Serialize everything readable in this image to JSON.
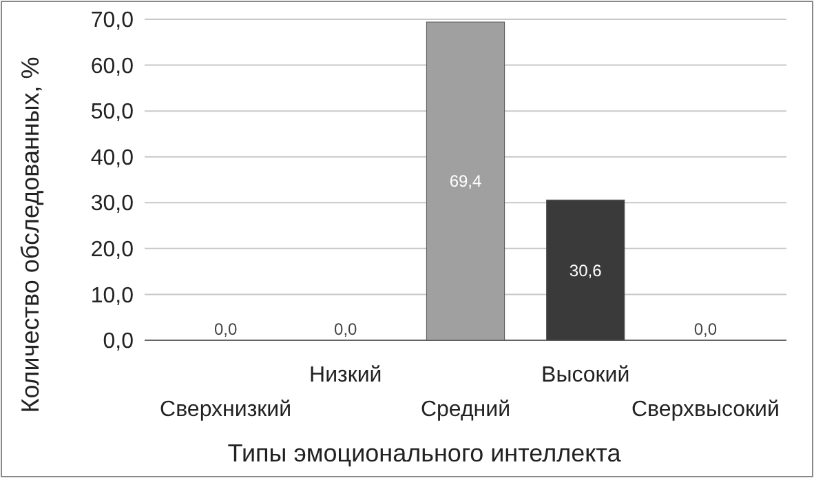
{
  "chart_data": {
    "type": "bar",
    "xlabel": "Типы эмоционального интеллекта",
    "ylabel": "Количество обследованных, %",
    "categories": [
      "Сверхнизкий",
      "Низкий",
      "Средний",
      "Высокий",
      "Сверхвысокий"
    ],
    "values": [
      0,
      0,
      69.4,
      30.6,
      0
    ],
    "colors": [
      "#8c8c8c",
      "#8c8c8c",
      "#a0a0a0",
      "#3a3a3a",
      "#8c8c8c"
    ],
    "value_labels": [
      "0,0",
      "0,0",
      "69,4",
      "30,6",
      "0,0"
    ],
    "ylim": [
      0,
      70
    ],
    "yticks": [
      {
        "value": 0,
        "label": "0,0"
      },
      {
        "value": 10,
        "label": "10,0"
      },
      {
        "value": 20,
        "label": "20,0"
      },
      {
        "value": 30,
        "label": "30,0"
      },
      {
        "value": 40,
        "label": "40,0"
      },
      {
        "value": 50,
        "label": "50,0"
      },
      {
        "value": 60,
        "label": "60,0"
      },
      {
        "value": 70,
        "label": "70,0"
      }
    ],
    "grid": "y"
  }
}
